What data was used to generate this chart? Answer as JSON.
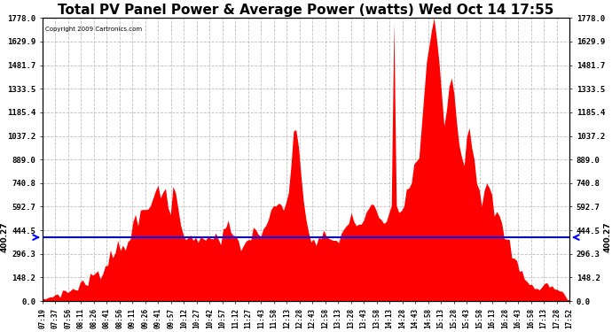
{
  "title": "Total PV Panel Power & Average Power (watts) Wed Oct 14 17:55",
  "copyright": "Copyright 2009 Cartronics.com",
  "avg_power": 400.27,
  "y_max": 1778.0,
  "y_ticks": [
    0.0,
    148.2,
    296.3,
    444.5,
    592.7,
    740.8,
    889.0,
    1037.2,
    1185.4,
    1333.5,
    1481.7,
    1629.9,
    1778.0
  ],
  "bar_color": "#FF0000",
  "avg_line_color": "#0000FF",
  "background_color": "#FFFFFF",
  "grid_color": "#C0C0C0",
  "title_fontsize": 11,
  "x_labels": [
    "07:19",
    "07:37",
    "07:56",
    "08:11",
    "08:26",
    "08:41",
    "08:56",
    "09:11",
    "09:26",
    "09:41",
    "09:57",
    "10:12",
    "10:27",
    "10:42",
    "10:57",
    "11:12",
    "11:27",
    "11:43",
    "11:58",
    "12:13",
    "12:28",
    "12:43",
    "12:58",
    "13:13",
    "13:28",
    "13:43",
    "13:58",
    "14:13",
    "14:28",
    "14:43",
    "14:58",
    "15:13",
    "15:28",
    "15:43",
    "15:58",
    "16:13",
    "16:28",
    "16:43",
    "16:58",
    "17:13",
    "17:28",
    "17:52"
  ],
  "ylim": [
    0,
    1778.0
  ],
  "figsize": [
    6.9,
    3.75
  ],
  "dpi": 100
}
